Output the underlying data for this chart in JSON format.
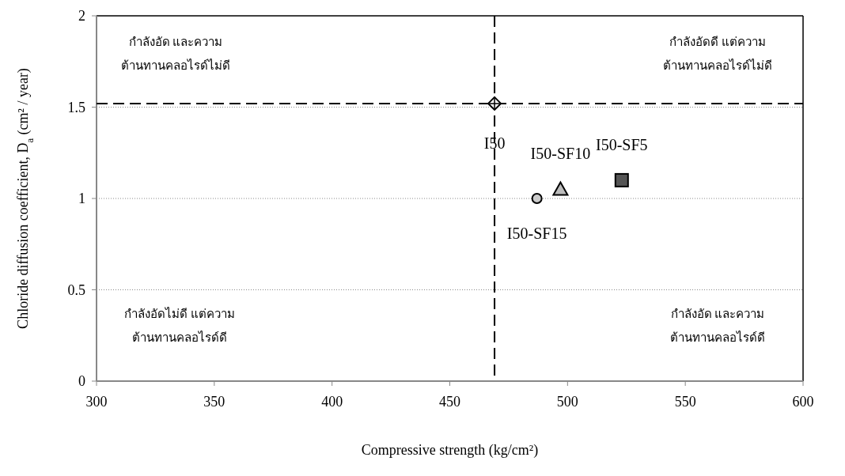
{
  "chart_data": {
    "type": "scatter",
    "xlabel": "Compressive strength (kg/cm²)",
    "ylabel": "Chloride diffusion coefficient, D$_{a}$ (cm² / year)",
    "xlim": [
      300,
      600
    ],
    "xticks": [
      300,
      350,
      400,
      450,
      500,
      550,
      600
    ],
    "ylim": [
      0,
      2
    ],
    "yticks": [
      0,
      0.5,
      1,
      1.5,
      2
    ],
    "grid": "y",
    "series": [
      {
        "name": "I50",
        "color": "#000000",
        "marker": "diamond",
        "x": [
          469
        ],
        "values": [
          1.52
        ]
      },
      {
        "name": "I50-SF10",
        "color": "#000000",
        "marker": "triangle",
        "x": [
          497
        ],
        "values": [
          1.05
        ]
      },
      {
        "name": "I50-SF5",
        "color": "#000000",
        "marker": "square",
        "x": [
          523
        ],
        "values": [
          1.1
        ]
      },
      {
        "name": "I50-SF15",
        "color": "#000000",
        "marker": "circle",
        "x": [
          487
        ],
        "values": [
          1.0
        ]
      }
    ],
    "ref_lines": [
      {
        "axis": "x",
        "value": 469,
        "color": "#000000",
        "line_style": "dashed"
      },
      {
        "axis": "y",
        "value": 1.52,
        "color": "#000000",
        "line_style": "dashed"
      }
    ],
    "annotations": [
      "กำลังอัด และความ\nต้านทานคลอไรด์ไม่ดี",
      "กำลังอัดดี แต่ความ\nต้านทานคลอไรด์ไม่ดี",
      "กำลังอัดไม่ดี แต่ความ\nต้านทานคลอไรด์ดี",
      "กำลังอัด และความ\nต้านทานคลอไรด์ดี"
    ]
  }
}
